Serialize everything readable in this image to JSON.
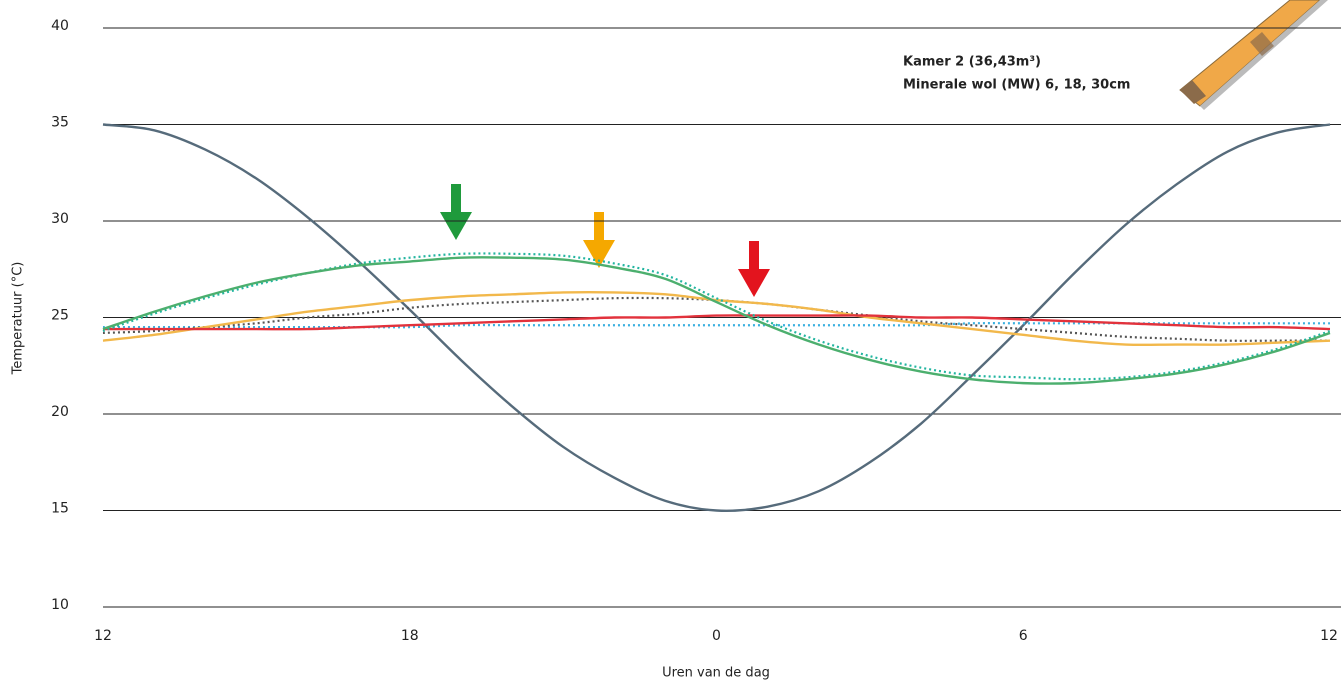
{
  "chart_data": {
    "type": "line",
    "x_label": "Uren van de dag",
    "y_label": "Temperatuur (°C)",
    "annotations": [
      "Kamer 2 (36,43m³)",
      "Minerale wol (MW) 6, 18, 30cm"
    ],
    "x": [
      12,
      13,
      14,
      15,
      16,
      17,
      18,
      19,
      20,
      21,
      22,
      23,
      24,
      25,
      26,
      27,
      28,
      29,
      30,
      31,
      32,
      33,
      34,
      35,
      36
    ],
    "xlim": [
      12,
      36
    ],
    "xticks": [
      12,
      18,
      {
        "value": 24,
        "label": "0"
      },
      {
        "value": 30,
        "label": "6"
      },
      {
        "value": 36,
        "label": "12"
      }
    ],
    "ylim": [
      10,
      40
    ],
    "yticks": [
      10,
      15,
      20,
      25,
      30,
      35,
      40
    ],
    "grid": true,
    "series": [
      {
        "color": "#566b7b",
        "style": "solid",
        "values": [
          35,
          34.7,
          33.7,
          32.2,
          30.2,
          27.9,
          25.4,
          22.8,
          20.4,
          18.3,
          16.7,
          15.5,
          15.0,
          15.2,
          16.0,
          17.5,
          19.5,
          22.0,
          24.6,
          27.3,
          29.8,
          31.9,
          33.6,
          34.6,
          35.0
        ]
      },
      {
        "color": "#3ab0e0",
        "style": "dotted",
        "values": [
          24.5,
          24.5,
          24.5,
          24.5,
          24.5,
          24.5,
          24.5,
          24.6,
          24.6,
          24.6,
          24.6,
          24.6,
          24.6,
          24.6,
          24.6,
          24.6,
          24.6,
          24.7,
          24.7,
          24.7,
          24.7,
          24.7,
          24.7,
          24.7,
          24.7
        ]
      },
      {
        "color": "#555555",
        "style": "dotted",
        "values": [
          24.2,
          24.3,
          24.5,
          24.7,
          25.0,
          25.2,
          25.5,
          25.7,
          25.8,
          25.9,
          26.0,
          26.0,
          25.9,
          25.7,
          25.4,
          25.1,
          24.8,
          24.6,
          24.4,
          24.2,
          24.0,
          23.9,
          23.8,
          23.8,
          23.8
        ]
      },
      {
        "color": "#f2b84b",
        "style": "solid",
        "values": [
          23.8,
          24.1,
          24.5,
          24.9,
          25.3,
          25.6,
          25.9,
          26.1,
          26.2,
          26.3,
          26.3,
          26.2,
          25.9,
          25.7,
          25.4,
          25.0,
          24.7,
          24.4,
          24.1,
          23.8,
          23.6,
          23.6,
          23.6,
          23.7,
          23.8
        ]
      },
      {
        "color": "#e2323c",
        "style": "solid",
        "values": [
          24.4,
          24.4,
          24.4,
          24.4,
          24.4,
          24.5,
          24.6,
          24.7,
          24.8,
          24.9,
          25.0,
          25.0,
          25.1,
          25.1,
          25.1,
          25.1,
          25.0,
          25.0,
          24.9,
          24.8,
          24.7,
          24.6,
          24.5,
          24.5,
          24.4
        ]
      },
      {
        "color": "#22b5a0",
        "style": "dotted",
        "values": [
          24.3,
          25.2,
          26.0,
          26.7,
          27.3,
          27.8,
          28.1,
          28.3,
          28.3,
          28.2,
          27.8,
          27.2,
          26.0,
          24.8,
          23.8,
          23.0,
          22.4,
          22.0,
          21.9,
          21.8,
          21.9,
          22.2,
          22.7,
          23.4,
          24.3
        ]
      },
      {
        "color": "#4caf6e",
        "style": "solid",
        "values": [
          24.4,
          25.3,
          26.1,
          26.8,
          27.3,
          27.7,
          27.9,
          28.1,
          28.1,
          28.0,
          27.6,
          27.0,
          25.8,
          24.6,
          23.6,
          22.8,
          22.2,
          21.8,
          21.6,
          21.6,
          21.8,
          22.1,
          22.6,
          23.3,
          24.2
        ]
      }
    ]
  }
}
